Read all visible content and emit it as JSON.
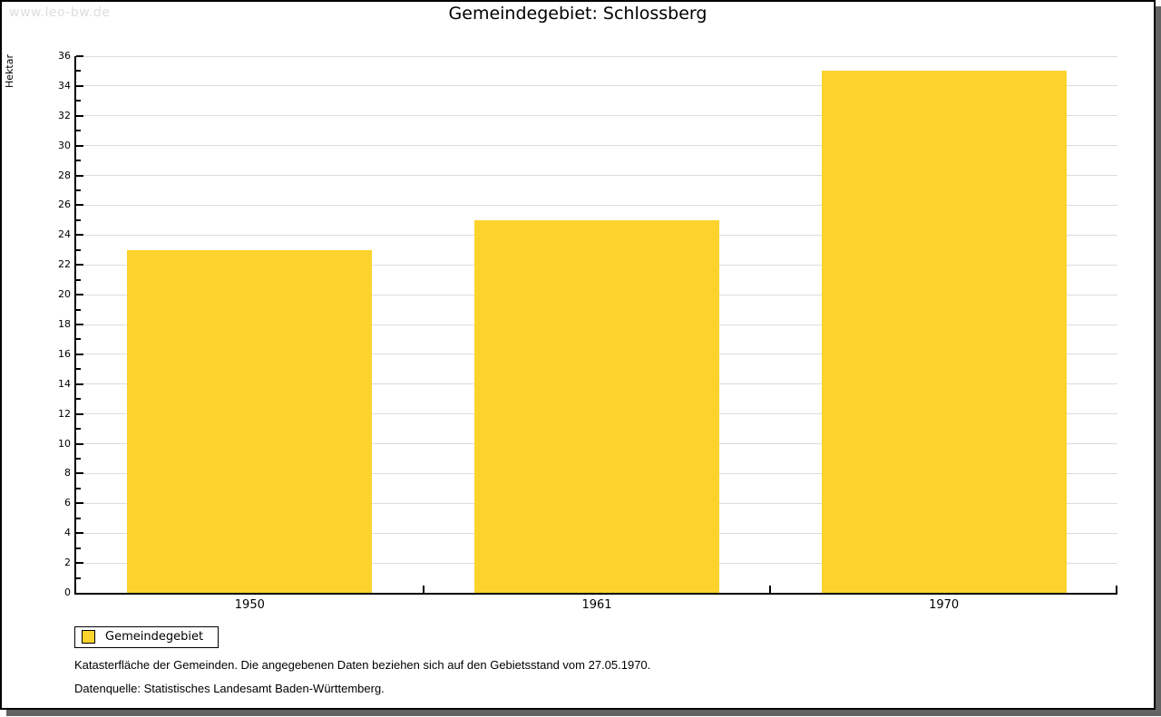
{
  "watermark": "www.leo-bw.de",
  "header": {
    "title": "Gemeindegebiet: Schlossberg"
  },
  "chart_data": {
    "type": "bar",
    "title": "Gemeindegebiet: Schlossberg",
    "categories": [
      "1950",
      "1961",
      "1970"
    ],
    "series": [
      {
        "name": "Gemeindegebiet",
        "values": [
          23,
          25,
          35
        ]
      }
    ],
    "xlabel": "",
    "ylabel": "Hektar",
    "ylim": [
      0,
      36
    ],
    "ytick_step": 2,
    "minor_tick_step": 1,
    "grid": true,
    "legend_position": "bottom-left",
    "bar_color": "#fcd32c"
  },
  "legend": {
    "items": [
      {
        "label": "Gemeindegebiet",
        "color": "#fcd32c"
      }
    ]
  },
  "footnotes": [
    "Katasterfläche der Gemeinden. Die angegebenen Daten beziehen sich auf den Gebietsstand vom 27.05.1970.",
    "Datenquelle: Statistisches Landesamt Baden-Württemberg."
  ],
  "colors": {
    "bar": "#fcd32c",
    "grid": "#dcdcdc",
    "axis": "#000000",
    "watermark": "#dedede",
    "shadow": "#636363"
  }
}
